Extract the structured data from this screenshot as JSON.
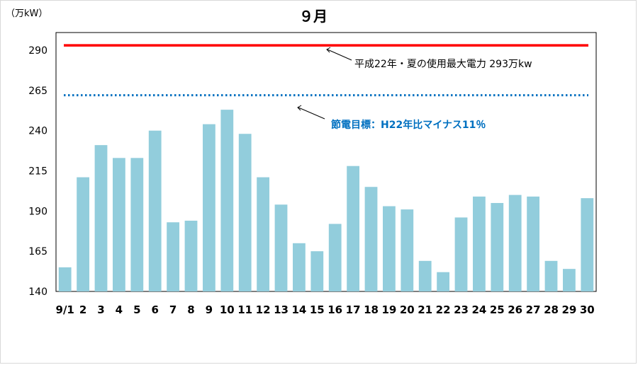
{
  "chart_data": {
    "type": "bar",
    "title": "９月",
    "unit_label": "（万kW）",
    "ylim": [
      140,
      300
    ],
    "yticks": [
      140,
      165,
      190,
      215,
      240,
      265,
      290
    ],
    "grid": false,
    "categories": [
      "9/1",
      "2",
      "3",
      "4",
      "5",
      "6",
      "7",
      "8",
      "9",
      "10",
      "11",
      "12",
      "13",
      "14",
      "15",
      "16",
      "17",
      "18",
      "19",
      "20",
      "21",
      "22",
      "23",
      "24",
      "25",
      "26",
      "27",
      "28",
      "29",
      "30"
    ],
    "series": [
      {
        "values": [
          155,
          211,
          231,
          223,
          223,
          240,
          183,
          184,
          244,
          253,
          238,
          211,
          194,
          170,
          165,
          182,
          218,
          205,
          193,
          191,
          159,
          152,
          186,
          199,
          195,
          200,
          199,
          159,
          154,
          198
        ]
      }
    ],
    "bar_color": "#92cddc",
    "reference_lines": [
      {
        "value": 293,
        "color": "#ff0000",
        "style": "solid",
        "label": "平成22年・夏の使用最大電力 293万kw",
        "label_color": "#000000"
      },
      {
        "value": 262,
        "color": "#0070c0",
        "style": "dotted",
        "label": "節電目標：H22年比マイナス11％",
        "label_color": "#0070c0"
      }
    ]
  }
}
